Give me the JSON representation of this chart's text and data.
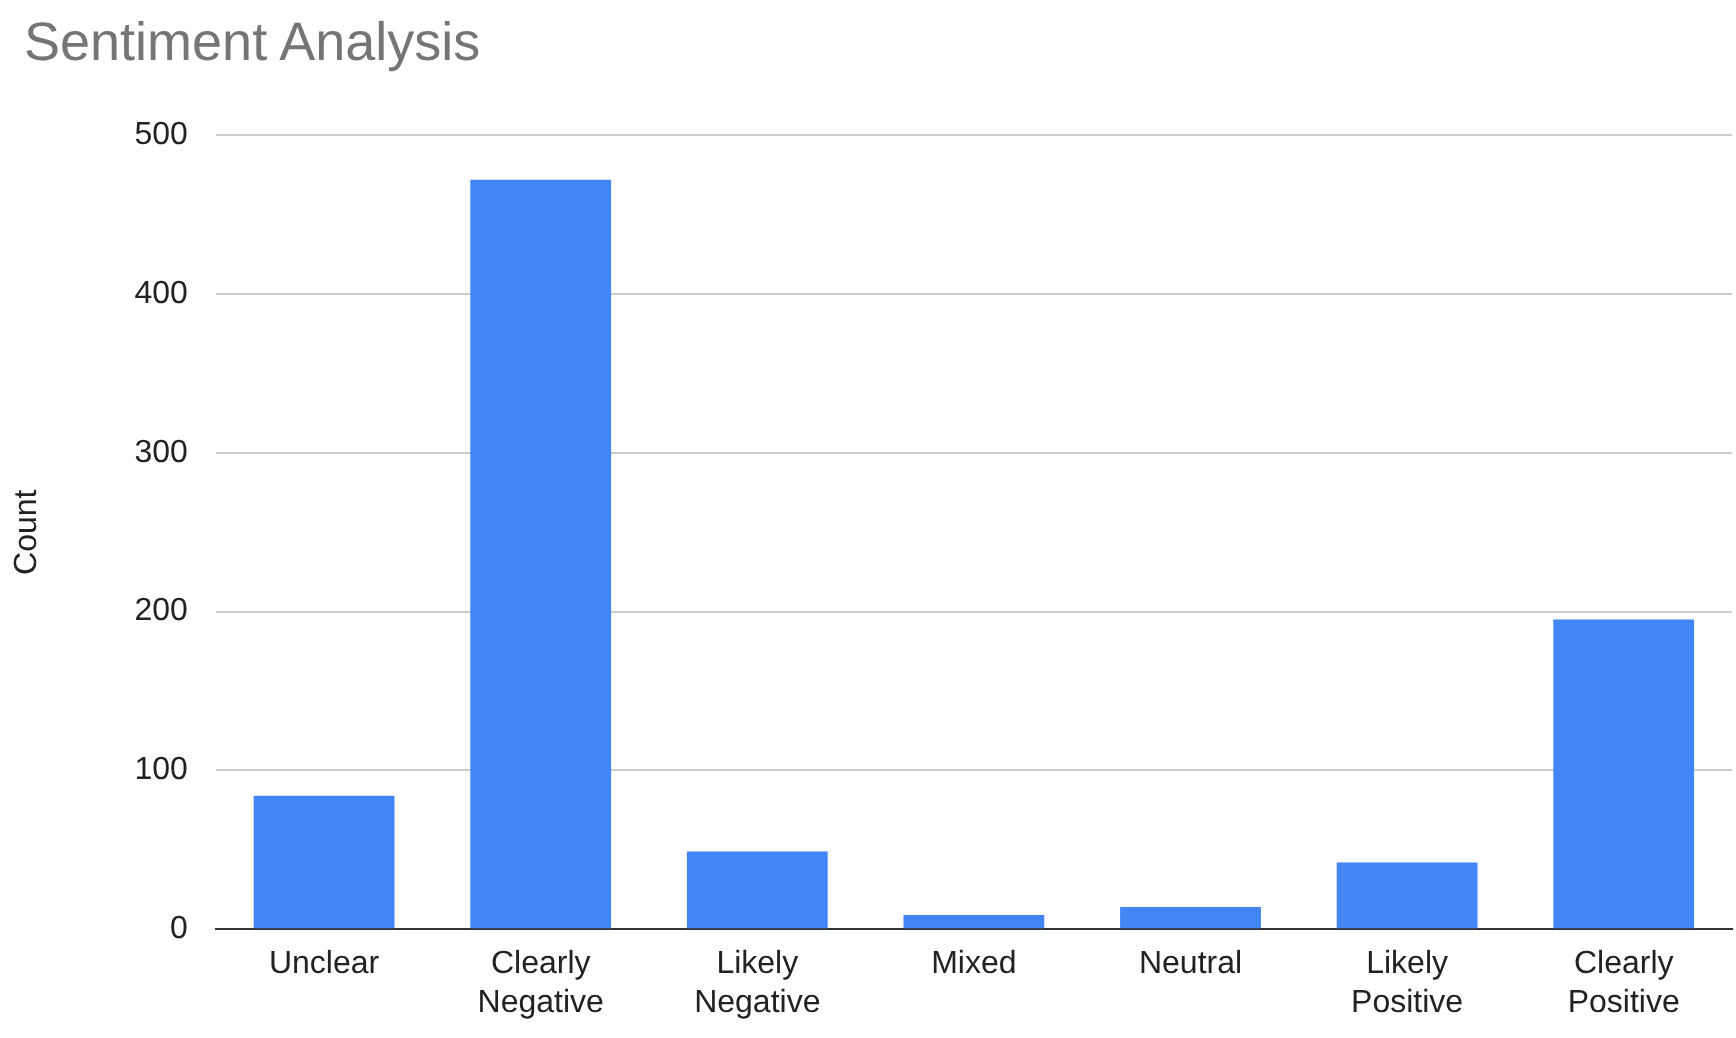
{
  "chart_data": {
    "type": "bar",
    "title": "Sentiment Analysis",
    "ylabel": "Count",
    "categories": [
      "Unclear",
      "Clearly Negative",
      "Likely Negative",
      "Mixed",
      "Neutral",
      "Likely Positive",
      "Clearly Positive"
    ],
    "values": [
      84,
      472,
      49,
      9,
      14,
      42,
      195
    ],
    "color": "#4285f4",
    "ylim": [
      0,
      500
    ],
    "yticks": [
      0,
      100,
      200,
      300,
      400,
      500
    ],
    "grid": "y"
  }
}
